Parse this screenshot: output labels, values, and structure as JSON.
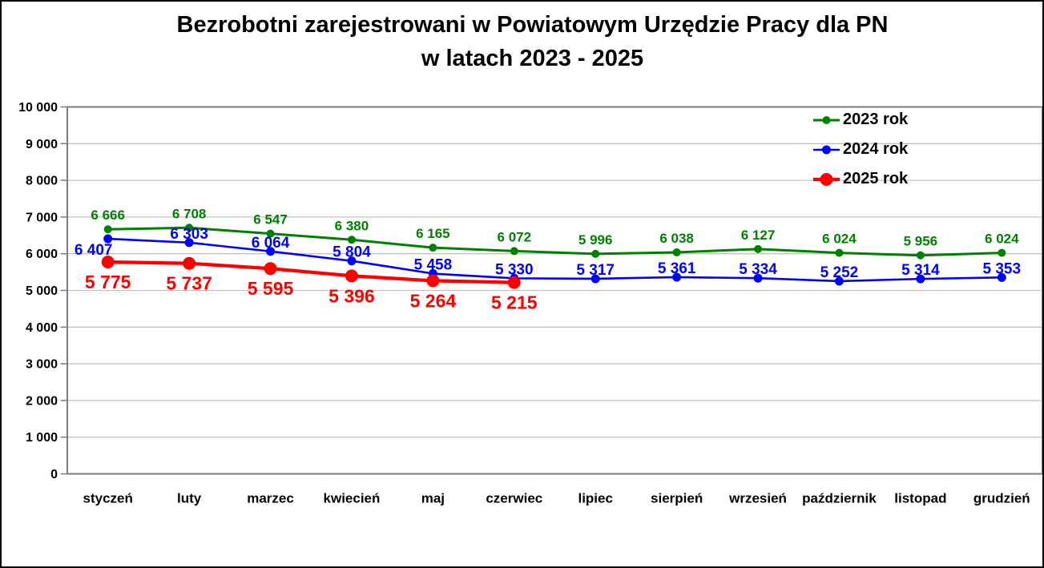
{
  "title": {
    "line1": "Bezrobotni zarejestrowani w Powiatowym Urzędzie Pracy dla PN",
    "line2": "w latach 2023 - 2025"
  },
  "chart_data": {
    "type": "line",
    "title": "Bezrobotni zarejestrowani w Powiatowym Urzędzie Pracy dla PN w latach 2023 - 2025",
    "xlabel": "",
    "ylabel": "",
    "categories": [
      "styczeń",
      "luty",
      "marzec",
      "kwiecień",
      "maj",
      "czerwiec",
      "lipiec",
      "sierpień",
      "wrzesień",
      "październik",
      "listopad",
      "grudzień"
    ],
    "series": [
      {
        "name": "2023 rok",
        "color": "#008000",
        "line_width": 3,
        "marker_radius": 5,
        "values": [
          6666,
          6708,
          6547,
          6380,
          6165,
          6072,
          5996,
          6038,
          6127,
          6024,
          5956,
          6024
        ]
      },
      {
        "name": "2024 rok",
        "color": "#0000FF",
        "line_width": 2.6,
        "marker_radius": 5.5,
        "values": [
          6407,
          6303,
          6064,
          5804,
          5458,
          5330,
          5317,
          5361,
          5334,
          5252,
          5314,
          5353
        ]
      },
      {
        "name": "2025 rok",
        "color": "#FF0000",
        "line_width": 4.2,
        "marker_radius": 8,
        "values": [
          5775,
          5737,
          5595,
          5396,
          5264,
          5215,
          null,
          null,
          null,
          null,
          null,
          null
        ]
      }
    ],
    "ylim": [
      0,
      10000
    ],
    "ytick_step": 1000,
    "ytick_labels": [
      "0",
      "1 000",
      "2 000",
      "3 000",
      "4 000",
      "5 000",
      "6 000",
      "7 000",
      "8 000",
      "9 000",
      "10 000"
    ],
    "grid": true,
    "legend_position": "top-right",
    "data_labels": true,
    "number_format": "space-thousands",
    "colors": {
      "gridline": "#C3C3C3",
      "plot_frame": "#7D7D7D",
      "text": "#000000",
      "background": "#FFFFFF"
    }
  }
}
